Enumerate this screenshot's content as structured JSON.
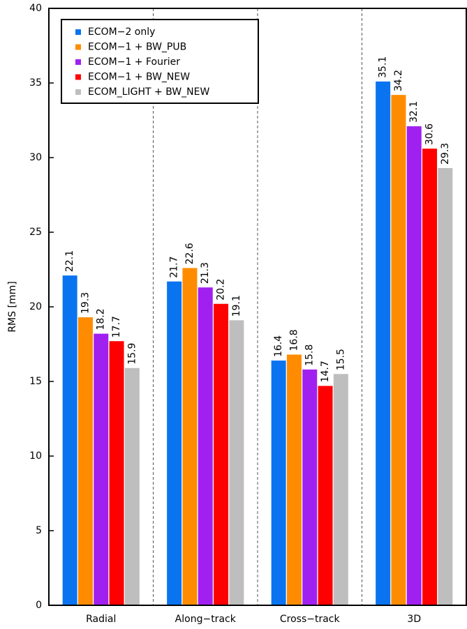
{
  "chart_data": {
    "type": "bar",
    "y_label": "RMS [mm]",
    "categories": [
      "Radial",
      "Along−track",
      "Cross−track",
      "3D"
    ],
    "series": [
      {
        "name": "ECOM−2 only",
        "color": "#0a74f0",
        "values": [
          22.1,
          21.7,
          16.4,
          35.1
        ]
      },
      {
        "name": "ECOM−1 + BW_PUB",
        "color": "#ff8c00",
        "values": [
          19.3,
          22.6,
          16.8,
          34.2
        ]
      },
      {
        "name": "ECOM−1 + Fourier",
        "color": "#a020f0",
        "values": [
          18.2,
          21.3,
          15.8,
          32.1
        ]
      },
      {
        "name": "ECOM−1 + BW_NEW",
        "color": "#ff0000",
        "values": [
          17.7,
          20.2,
          14.7,
          30.6
        ]
      },
      {
        "name": "ECOM_LIGHT + BW_NEW",
        "color": "#bebebe",
        "values": [
          15.9,
          19.1,
          15.5,
          29.3
        ]
      }
    ],
    "ylim": [
      0,
      40
    ],
    "yticks": [
      0,
      5,
      10,
      15,
      20,
      25,
      30,
      35,
      40
    ],
    "legend": "upper-left"
  }
}
